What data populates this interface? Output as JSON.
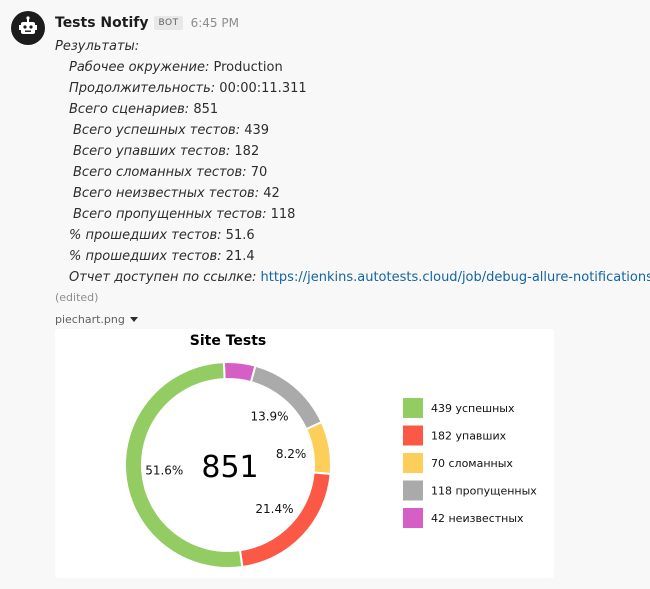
{
  "sender": {
    "name": "Tests Notify",
    "badge": "BOT",
    "time": "6:45 PM"
  },
  "message": {
    "title": "Результаты:",
    "lines": [
      {
        "label": "Рабочее окружение:",
        "value": "Production"
      },
      {
        "label": "Продолжительность:",
        "value": "00:00:11.311"
      },
      {
        "label": "Всего сценариев:",
        "value": "851"
      },
      {
        "label": "Всего успешных тестов:",
        "value": "439"
      },
      {
        "label": "Всего упавших тестов:",
        "value": "182"
      },
      {
        "label": "Всего сломанных тестов:",
        "value": "70"
      },
      {
        "label": "Всего неизвестных тестов:",
        "value": "42"
      },
      {
        "label": "Всего пропущенных тестов:",
        "value": "118"
      },
      {
        "label": "% прошедших тестов:",
        "value": "51.6"
      },
      {
        "label": "% прошедших тестов:",
        "value": "21.4"
      }
    ],
    "report": {
      "label": "Отчет доступен по ссылке:",
      "url": "https://jenkins.autotests.cloud/job/debug-allure-notifications"
    },
    "edited": "(edited)"
  },
  "attachment": {
    "filename": "piechart.png"
  },
  "chart_data": {
    "type": "pie",
    "title": "Site Tests",
    "center_label": "851",
    "slices": [
      {
        "label": "439 успешных",
        "value": 439,
        "percent_label": "51.6%",
        "color": "#94cc64"
      },
      {
        "label": "182 упавших",
        "value": 182,
        "percent_label": "21.4%",
        "color": "#fc5846"
      },
      {
        "label": "70 сломанных",
        "value": 70,
        "percent_label": "8.2%",
        "color": "#fdcf5a"
      },
      {
        "label": "118 пропущенных",
        "value": 118,
        "percent_label": "13.9%",
        "color": "#aaaaaa"
      },
      {
        "label": "42 неизвестных",
        "value": 42,
        "percent_label": "",
        "color": "#d65fc6"
      }
    ],
    "legend_order": [
      0,
      1,
      2,
      3,
      4
    ],
    "legend_position": "right"
  }
}
